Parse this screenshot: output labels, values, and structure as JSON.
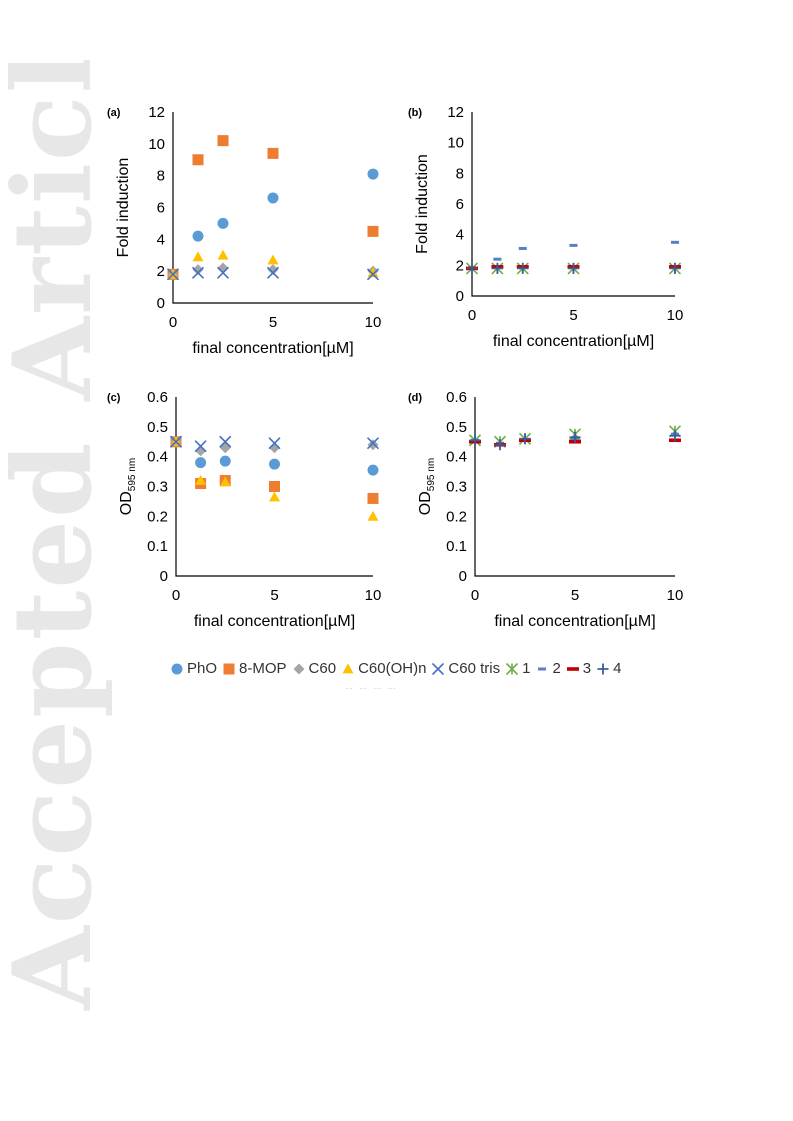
{
  "watermark_text": "Accepted Article",
  "series_styles": {
    "PhO": {
      "color": "#5b9bd5",
      "marker": "circle"
    },
    "8-MOP": {
      "color": "#ed7d31",
      "marker": "square"
    },
    "C60": {
      "color": "#a5a5a5",
      "marker": "diamond"
    },
    "C60(OH)n": {
      "color": "#ffc000",
      "marker": "triangle"
    },
    "C60 tris": {
      "color": "#4472c4",
      "marker": "x"
    },
    "1": {
      "color": "#70ad47",
      "marker": "star"
    },
    "2": {
      "color": "#5b7fc4",
      "marker": "dash"
    },
    "3": {
      "color": "#c00000",
      "marker": "dash-wide"
    },
    "4": {
      "color": "#3a5ba0",
      "marker": "plus"
    }
  },
  "legend": {
    "entries": [
      "PhO",
      "8-MOP",
      "C60",
      "C60(OH)n",
      "C60 tris",
      "1",
      "2",
      "3",
      "4"
    ],
    "tail_text": "… … … …"
  },
  "chart_data": [
    {
      "panel": "(a)",
      "type": "scatter",
      "xlabel": "final concentration[µM]",
      "ylabel": "Fold induction",
      "xlim": [
        0,
        10
      ],
      "ylim": [
        0,
        12
      ],
      "xticks": [
        0,
        5,
        10
      ],
      "yticks": [
        0,
        2,
        4,
        6,
        8,
        10,
        12
      ],
      "x": [
        0,
        1.25,
        2.5,
        5,
        10
      ],
      "series": [
        {
          "name": "PhO",
          "values": [
            1.8,
            4.2,
            5.0,
            6.6,
            8.1
          ]
        },
        {
          "name": "8-MOP",
          "values": [
            1.8,
            9.0,
            10.2,
            9.4,
            4.5
          ]
        },
        {
          "name": "C60",
          "values": [
            1.8,
            2.1,
            2.2,
            2.1,
            2.0
          ]
        },
        {
          "name": "C60(OH)n",
          "values": [
            1.8,
            2.9,
            3.0,
            2.7,
            1.9
          ]
        },
        {
          "name": "C60 tris",
          "values": [
            1.8,
            1.9,
            1.9,
            1.9,
            1.8
          ]
        }
      ]
    },
    {
      "panel": "(b)",
      "type": "scatter",
      "xlabel": "final concentration[µM]",
      "ylabel": "Fold induction",
      "xlim": [
        0,
        10
      ],
      "ylim": [
        0,
        12
      ],
      "xticks": [
        0,
        5,
        10
      ],
      "yticks": [
        0,
        2,
        4,
        6,
        8,
        10,
        12
      ],
      "x": [
        0,
        1.25,
        2.5,
        5,
        10
      ],
      "series": [
        {
          "name": "1",
          "values": [
            1.8,
            1.8,
            1.8,
            1.8,
            1.8
          ]
        },
        {
          "name": "2",
          "values": [
            1.8,
            2.4,
            3.1,
            3.3,
            3.5
          ]
        },
        {
          "name": "3",
          "values": [
            1.8,
            1.9,
            1.9,
            1.9,
            1.9
          ]
        },
        {
          "name": "4",
          "values": [
            1.8,
            1.8,
            1.8,
            1.8,
            1.8
          ]
        }
      ]
    },
    {
      "panel": "(c)",
      "type": "scatter",
      "xlabel": "final concentration[µM]",
      "ylabel": "OD",
      "ylabel_sub": "595 nm",
      "xlim": [
        0,
        10
      ],
      "ylim": [
        0,
        0.6
      ],
      "xticks": [
        0,
        5,
        10
      ],
      "yticks": [
        0,
        0.1,
        0.2,
        0.3,
        0.4,
        0.5,
        0.6
      ],
      "x": [
        0,
        1.25,
        2.5,
        5,
        10
      ],
      "series": [
        {
          "name": "PhO",
          "values": [
            0.45,
            0.38,
            0.385,
            0.375,
            0.355
          ]
        },
        {
          "name": "8-MOP",
          "values": [
            0.45,
            0.31,
            0.32,
            0.3,
            0.26
          ]
        },
        {
          "name": "C60",
          "values": [
            0.45,
            0.42,
            0.43,
            0.43,
            0.44
          ]
        },
        {
          "name": "C60(OH)n",
          "values": [
            0.45,
            0.32,
            0.315,
            0.265,
            0.2
          ]
        },
        {
          "name": "C60 tris",
          "values": [
            0.45,
            0.435,
            0.45,
            0.445,
            0.445
          ]
        }
      ]
    },
    {
      "panel": "(d)",
      "type": "scatter",
      "xlabel": "final concentration[µM]",
      "ylabel": "OD",
      "ylabel_sub": "595 nm",
      "xlim": [
        0,
        10
      ],
      "ylim": [
        0,
        0.6
      ],
      "xticks": [
        0,
        5,
        10
      ],
      "yticks": [
        0,
        0.1,
        0.2,
        0.3,
        0.4,
        0.5,
        0.6
      ],
      "x": [
        0,
        1.25,
        2.5,
        5,
        10
      ],
      "series": [
        {
          "name": "1",
          "values": [
            0.455,
            0.45,
            0.46,
            0.475,
            0.485
          ]
        },
        {
          "name": "2",
          "values": [
            0.455,
            0.445,
            0.455,
            0.46,
            0.475
          ]
        },
        {
          "name": "3",
          "values": [
            0.45,
            0.44,
            0.455,
            0.45,
            0.455
          ]
        },
        {
          "name": "4",
          "values": [
            0.455,
            0.44,
            0.46,
            0.465,
            0.47
          ]
        }
      ]
    }
  ]
}
